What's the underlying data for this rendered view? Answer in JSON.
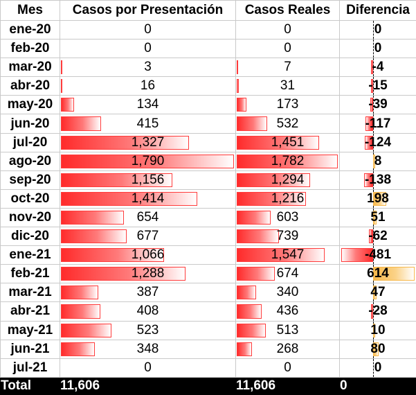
{
  "headers": {
    "mes": "Mes",
    "presentacion": "Casos por Presentación",
    "reales": "Casos Reales",
    "diferencia": "Diferencia"
  },
  "rows": [
    {
      "mes": "ene-20",
      "presentacion": "0",
      "reales": "0",
      "diferencia": "0",
      "pres_value": 0,
      "real_value": 0,
      "diff_value": 0
    },
    {
      "mes": "feb-20",
      "presentacion": "0",
      "reales": "0",
      "diferencia": "0",
      "pres_value": 0,
      "real_value": 0,
      "diff_value": 0
    },
    {
      "mes": "mar-20",
      "presentacion": "3",
      "reales": "7",
      "diferencia": "-4",
      "pres_value": 3,
      "real_value": 7,
      "diff_value": -4
    },
    {
      "mes": "abr-20",
      "presentacion": "16",
      "reales": "31",
      "diferencia": "-15",
      "pres_value": 16,
      "real_value": 31,
      "diff_value": -15
    },
    {
      "mes": "may-20",
      "presentacion": "134",
      "reales": "173",
      "diferencia": "-39",
      "pres_value": 134,
      "real_value": 173,
      "diff_value": -39
    },
    {
      "mes": "jun-20",
      "presentacion": "415",
      "reales": "532",
      "diferencia": "-117",
      "pres_value": 415,
      "real_value": 532,
      "diff_value": -117
    },
    {
      "mes": "jul-20",
      "presentacion": "1,327",
      "reales": "1,451",
      "diferencia": "-124",
      "pres_value": 1327,
      "real_value": 1451,
      "diff_value": -124
    },
    {
      "mes": "ago-20",
      "presentacion": "1,790",
      "reales": "1,782",
      "diferencia": "8",
      "pres_value": 1790,
      "real_value": 1782,
      "diff_value": 8
    },
    {
      "mes": "sep-20",
      "presentacion": "1,156",
      "reales": "1,294",
      "diferencia": "-138",
      "pres_value": 1156,
      "real_value": 1294,
      "diff_value": -138
    },
    {
      "mes": "oct-20",
      "presentacion": "1,414",
      "reales": "1,216",
      "diferencia": "198",
      "pres_value": 1414,
      "real_value": 1216,
      "diff_value": 198
    },
    {
      "mes": "nov-20",
      "presentacion": "654",
      "reales": "603",
      "diferencia": "51",
      "pres_value": 654,
      "real_value": 603,
      "diff_value": 51
    },
    {
      "mes": "dic-20",
      "presentacion": "677",
      "reales": "739",
      "diferencia": "-62",
      "pres_value": 677,
      "real_value": 739,
      "diff_value": -62
    },
    {
      "mes": "ene-21",
      "presentacion": "1,066",
      "reales": "1,547",
      "diferencia": "-481",
      "pres_value": 1066,
      "real_value": 1547,
      "diff_value": -481
    },
    {
      "mes": "feb-21",
      "presentacion": "1,288",
      "reales": "674",
      "diferencia": "614",
      "pres_value": 1288,
      "real_value": 674,
      "diff_value": 614
    },
    {
      "mes": "mar-21",
      "presentacion": "387",
      "reales": "340",
      "diferencia": "47",
      "pres_value": 387,
      "real_value": 340,
      "diff_value": 47
    },
    {
      "mes": "abr-21",
      "presentacion": "408",
      "reales": "436",
      "diferencia": "-28",
      "pres_value": 408,
      "real_value": 436,
      "diff_value": -28
    },
    {
      "mes": "may-21",
      "presentacion": "523",
      "reales": "513",
      "diferencia": "10",
      "pres_value": 523,
      "real_value": 513,
      "diff_value": 10
    },
    {
      "mes": "jun-21",
      "presentacion": "348",
      "reales": "268",
      "diferencia": "80",
      "pres_value": 348,
      "real_value": 268,
      "diff_value": 80
    },
    {
      "mes": "jul-21",
      "presentacion": "0",
      "reales": "0",
      "diferencia": "0",
      "pres_value": 0,
      "real_value": 0,
      "diff_value": 0
    }
  ],
  "total": {
    "label": "Total",
    "presentacion": "11,606",
    "reales": "11,606",
    "diferencia": "0"
  },
  "colors": {
    "bar_red": "#ff2b2b",
    "bar_orange": "#f7b84a",
    "total_bg": "#000000"
  }
}
